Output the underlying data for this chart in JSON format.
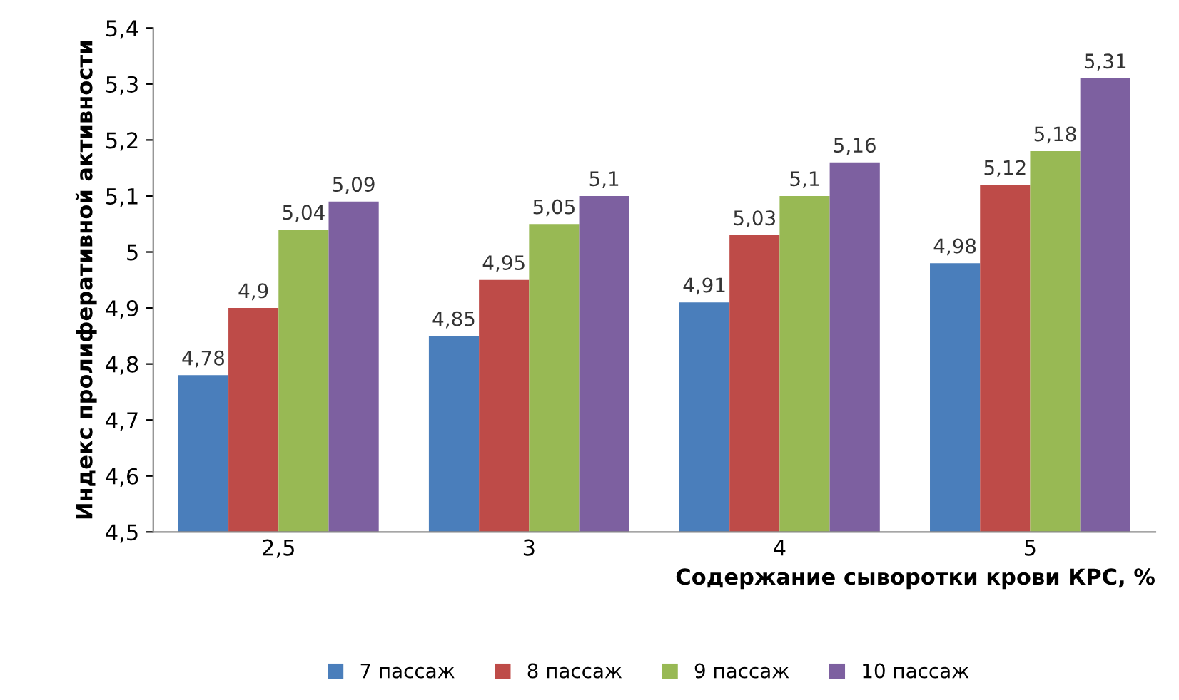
{
  "chart_data": {
    "type": "bar",
    "xlabel": "Содержание сыворотки крови КРС, %",
    "ylabel": "Индекс пролиферативной активности",
    "categories": [
      "2,5",
      "3",
      "4",
      "5"
    ],
    "series": [
      {
        "name": "7 пассаж",
        "color": "#4a7ebb",
        "values": [
          4.78,
          4.85,
          4.91,
          4.98
        ],
        "value_labels": [
          "4,78",
          "4,85",
          "4,91",
          "4,98"
        ]
      },
      {
        "name": "8 пассаж",
        "color": "#be4b48",
        "values": [
          4.9,
          4.95,
          5.03,
          5.12
        ],
        "value_labels": [
          "4,9",
          "4,95",
          "5,03",
          "5,12"
        ]
      },
      {
        "name": "9 пассаж",
        "color": "#98b954",
        "values": [
          5.04,
          5.05,
          5.1,
          5.18
        ],
        "value_labels": [
          "5,04",
          "5,05",
          "5,1",
          "5,18"
        ]
      },
      {
        "name": "10 пассаж",
        "color": "#7d60a0",
        "values": [
          5.09,
          5.1,
          5.16,
          5.31
        ],
        "value_labels": [
          "5,09",
          "5,1",
          "5,16",
          "5,31"
        ]
      }
    ],
    "ylim": [
      4.5,
      5.4
    ],
    "yticks": [
      {
        "value": 4.5,
        "label": "4,5"
      },
      {
        "value": 4.6,
        "label": "4,6"
      },
      {
        "value": 4.7,
        "label": "4,7"
      },
      {
        "value": 4.8,
        "label": "4,8"
      },
      {
        "value": 4.9,
        "label": "4,9"
      },
      5,
      {
        "value": 5.1,
        "label": "5,1"
      },
      {
        "value": 5.2,
        "label": "5,2"
      },
      {
        "value": 5.3,
        "label": "5,3"
      },
      {
        "value": 5.4,
        "label": "5,4"
      }
    ],
    "grid": false,
    "legend": "bottom"
  }
}
